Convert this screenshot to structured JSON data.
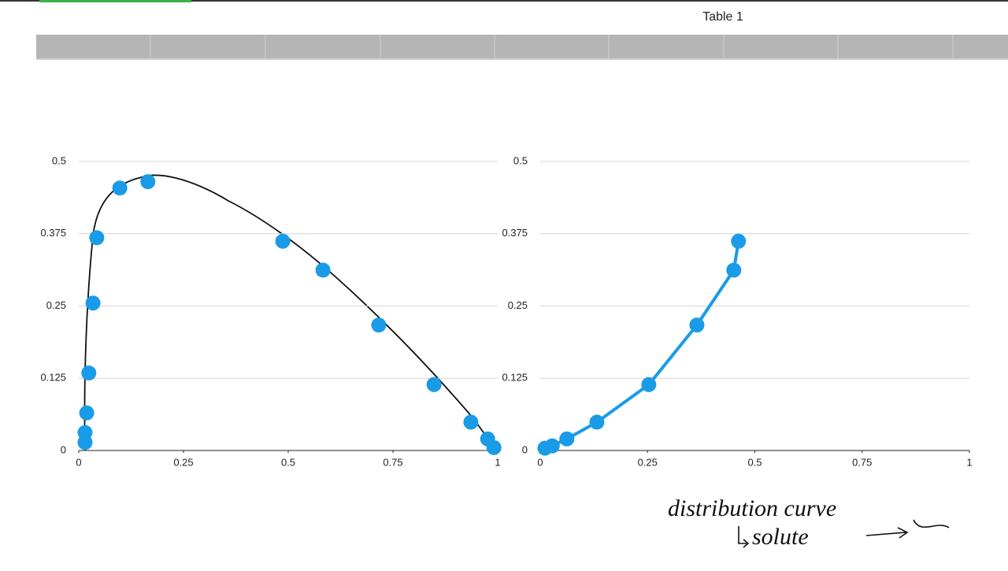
{
  "header": {
    "title": "Table 1"
  },
  "chart_data": [
    {
      "type": "scatter",
      "color": "#1a9be8",
      "line": false,
      "x": [
        0.015,
        0.015,
        0.019,
        0.024,
        0.034,
        0.043,
        0.098,
        0.165,
        0.487,
        0.583,
        0.716,
        0.848,
        0.936,
        0.976,
        0.991
      ],
      "values": [
        0.014,
        0.031,
        0.065,
        0.134,
        0.255,
        0.368,
        0.454,
        0.465,
        0.362,
        0.312,
        0.217,
        0.114,
        0.049,
        0.02,
        0.005
      ],
      "xlim": [
        0,
        1
      ],
      "ylim": [
        0,
        0.5
      ],
      "xticks": [
        0,
        0.25,
        0.5,
        0.75,
        1
      ],
      "yticks": [
        0,
        0.125,
        0.25,
        0.375,
        0.5
      ],
      "grid": true
    },
    {
      "type": "scatter",
      "color": "#1a9be8",
      "line": true,
      "x": [
        0.011,
        0.028,
        0.062,
        0.132,
        0.253,
        0.365,
        0.451,
        0.462
      ],
      "values": [
        0.004,
        0.008,
        0.02,
        0.049,
        0.114,
        0.217,
        0.312,
        0.362
      ],
      "xlim": [
        0,
        1
      ],
      "ylim": [
        0,
        0.5
      ],
      "xticks": [
        0,
        0.25,
        0.5,
        0.75,
        1
      ],
      "yticks": [
        0,
        0.125,
        0.25,
        0.375,
        0.5
      ],
      "grid": true
    }
  ],
  "annotations": [
    "distribution curve",
    "solute"
  ]
}
